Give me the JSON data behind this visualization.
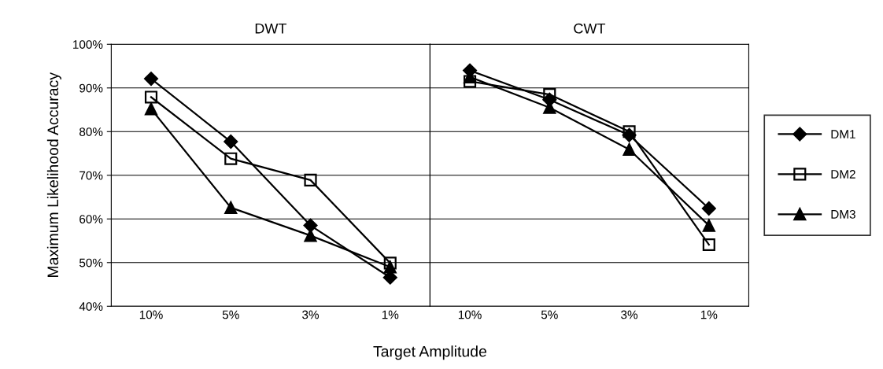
{
  "chart_data": [
    {
      "type": "line",
      "title": "DWT",
      "xlabel": "Target Amplitude",
      "ylabel": "Maximum Likelihood Accuracy",
      "categories": [
        "10%",
        "5%",
        "3%",
        "1%"
      ],
      "ylim": [
        40,
        100
      ],
      "yticks": [
        {
          "value": 40,
          "label": "40%"
        },
        {
          "value": 50,
          "label": "50%"
        },
        {
          "value": 60,
          "label": "60%"
        },
        {
          "value": 70,
          "label": "70%"
        },
        {
          "value": 80,
          "label": "80%"
        },
        {
          "value": 90,
          "label": "90%"
        },
        {
          "value": 100,
          "label": "100%"
        }
      ],
      "grid": "y",
      "legend": false,
      "series": [
        {
          "color": "#000000",
          "marker": "diamond",
          "values": [
            92.1,
            77.7,
            58.5,
            46.6
          ]
        },
        {
          "color": "#000000",
          "marker": "square",
          "values": [
            87.9,
            73.8,
            68.9,
            49.9
          ]
        },
        {
          "color": "#000000",
          "marker": "triangle",
          "values": [
            85.2,
            62.6,
            56.2,
            49.0
          ]
        }
      ]
    },
    {
      "type": "line",
      "title": "CWT",
      "tick_labels": "x",
      "categories": [
        "10%",
        "5%",
        "3%",
        "1%"
      ],
      "ylim": [
        40,
        100
      ],
      "yticks": [
        40,
        50,
        60,
        70,
        80,
        90,
        100
      ],
      "grid": "y",
      "legend": "right",
      "series": [
        {
          "name": "DM1",
          "color": "#000000",
          "marker": "diamond",
          "values": [
            94.0,
            87.3,
            79.2,
            62.4
          ]
        },
        {
          "name": "DM2",
          "color": "#000000",
          "marker": "square",
          "values": [
            91.5,
            88.5,
            80.0,
            54.1
          ]
        },
        {
          "name": "DM3",
          "color": "#000000",
          "marker": "triangle",
          "values": [
            92.5,
            85.5,
            75.9,
            58.5
          ]
        }
      ]
    }
  ]
}
